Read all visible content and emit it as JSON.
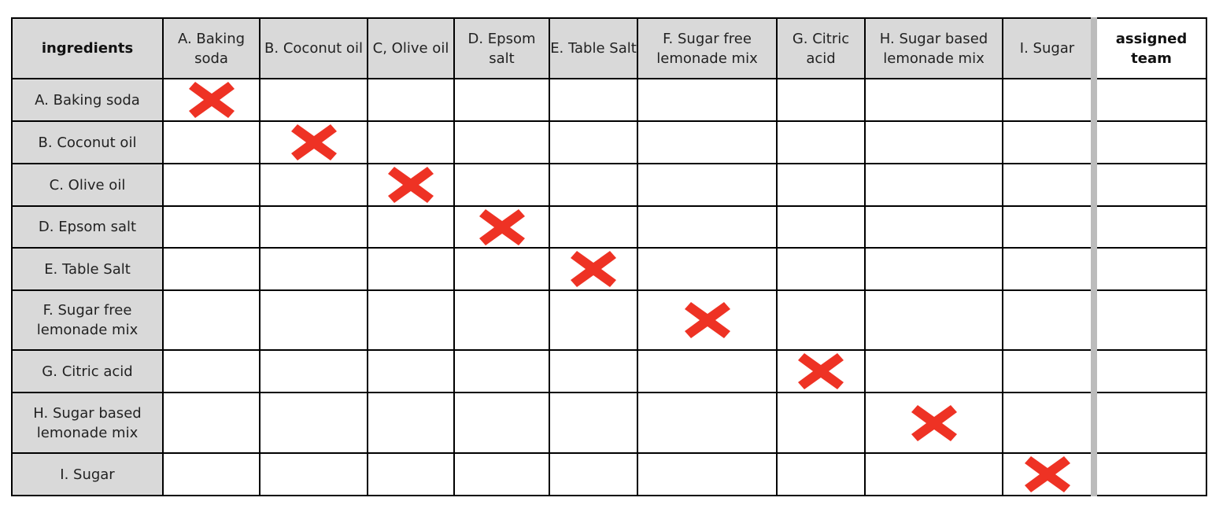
{
  "table": {
    "corner_header": "ingredients",
    "columns": [
      "A. Baking soda",
      "B. Coconut oil",
      "C, Olive oil",
      "D. Epsom salt",
      "E. Table Salt",
      "F. Sugar free lemonade mix",
      "G. Citric acid",
      "H. Sugar based lemonade mix",
      "I. Sugar"
    ],
    "team_header": "assigned team",
    "rows": [
      "A. Baking soda",
      "B. Coconut oil",
      "C. Olive oil",
      "D. Epsom salt",
      "E. Table Salt",
      "F. Sugar free lemonade mix",
      "G. Citric acid",
      "H. Sugar based lemonade mix",
      "I. Sugar"
    ],
    "marked_cells": "diagonal (row ingredient equals column ingredient)",
    "mark_icon": "red-x-icon",
    "mark_color": "#ee3224"
  }
}
